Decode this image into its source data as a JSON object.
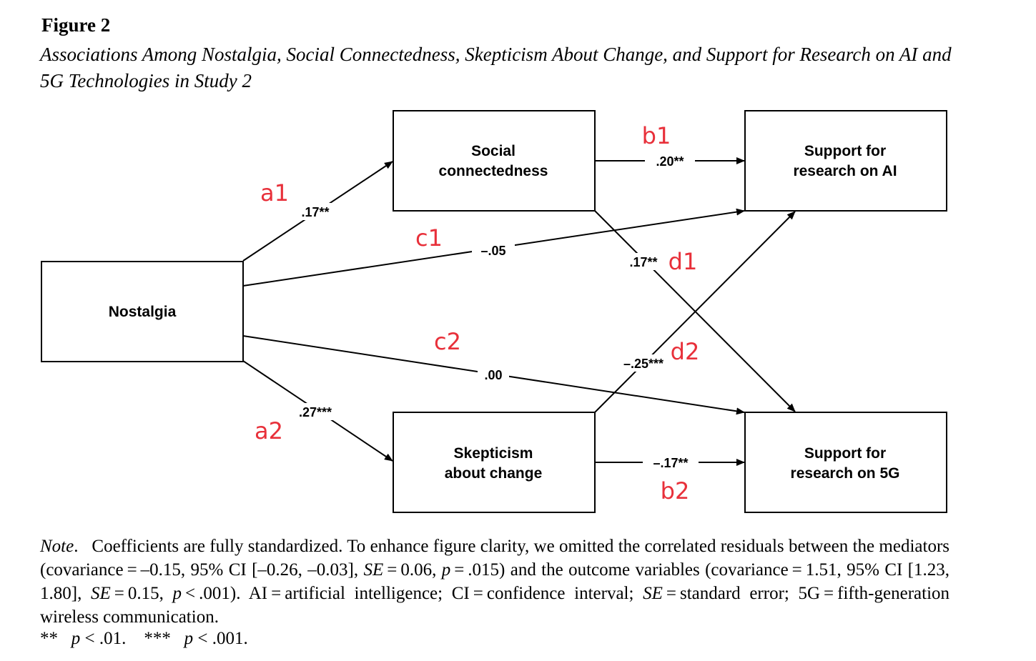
{
  "figure": {
    "heading": "Figure 2",
    "caption": "Associations Among Nostalgia, Social Connectedness, Skepticism About Change, and Support for Research on AI and 5G Technologies in Study 2"
  },
  "nodes": {
    "nostalgia": {
      "lines": [
        "Nostalgia"
      ]
    },
    "social": {
      "lines": [
        "Social",
        "connectedness"
      ]
    },
    "skepticism": {
      "lines": [
        "Skepticism",
        "about change"
      ]
    },
    "support_ai": {
      "lines": [
        "Support for",
        "research on AI"
      ]
    },
    "support_5g": {
      "lines": [
        "Support for",
        "research on 5G"
      ]
    }
  },
  "paths": [
    {
      "id": "a1",
      "from": "Nostalgia",
      "to": "Social connectedness",
      "label": "a1",
      "coefficient": ".17**"
    },
    {
      "id": "a2",
      "from": "Nostalgia",
      "to": "Skepticism about change",
      "label": "a2",
      "coefficient": ".27***"
    },
    {
      "id": "c1",
      "from": "Nostalgia",
      "to": "Support for research on AI",
      "label": "c1",
      "coefficient": "–.05"
    },
    {
      "id": "c2",
      "from": "Nostalgia",
      "to": "Support for research on 5G",
      "label": "c2",
      "coefficient": ".00"
    },
    {
      "id": "b1",
      "from": "Social connectedness",
      "to": "Support for research on AI",
      "label": "b1",
      "coefficient": ".20**"
    },
    {
      "id": "b2",
      "from": "Skepticism about change",
      "to": "Support for research on 5G",
      "label": "b2",
      "coefficient": "–.17**"
    },
    {
      "id": "d1",
      "from": "Social connectedness",
      "to": "Support for research on 5G",
      "label": "d1",
      "coefficient": ".17**"
    },
    {
      "id": "d2",
      "from": "Skepticism about change",
      "to": "Support for research on AI",
      "label": "d2",
      "coefficient": "–.25***"
    }
  ],
  "note": {
    "lead": "Note",
    "segments": [
      {
        "text": "Coefficients are fully standardized. To enhance figure clarity, we omitted the correlated residuals between the mediators (covariance = –0.15, 95% CI [–0.26, –0.03], ",
        "italic": false
      },
      {
        "text": "SE",
        "italic": true
      },
      {
        "text": " = 0.06, ",
        "italic": false
      },
      {
        "text": "p",
        "italic": true
      },
      {
        "text": " = .015) and the outcome variables (covariance = 1.51, 95% CI [1.23, 1.80], ",
        "italic": false
      },
      {
        "text": "SE",
        "italic": true
      },
      {
        "text": " = 0.15, ",
        "italic": false
      },
      {
        "text": "p",
        "italic": true
      },
      {
        "text": " < .001). AI = artificial intelligence; CI = confidence interval; ",
        "italic": false
      },
      {
        "text": "SE",
        "italic": true
      },
      {
        "text": " = standard error; 5G = fifth-generation wireless communication.",
        "italic": false
      }
    ]
  },
  "significance": [
    {
      "stars": "**",
      "p": "p",
      "rest": " < .01."
    },
    {
      "stars": "***",
      "p": "p",
      "rest": " < .001."
    }
  ]
}
